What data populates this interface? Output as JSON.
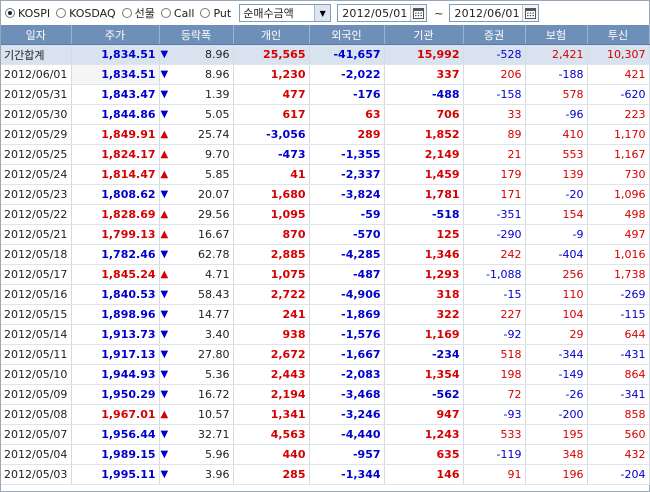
{
  "toolbar": {
    "markets": [
      {
        "label": "KOSPI",
        "checked": true
      },
      {
        "label": "KOSDAQ",
        "checked": false
      },
      {
        "label": "선물",
        "checked": false
      },
      {
        "label": "Call",
        "checked": false
      },
      {
        "label": "Put",
        "checked": false
      }
    ],
    "mode_select": "순매수금액",
    "date_from": "2012/05/01",
    "date_separator": "~",
    "date_to": "2012/06/01"
  },
  "table": {
    "columns": [
      "일자",
      "주가",
      "등락폭",
      "개인",
      "외국인",
      "기관",
      "증권",
      "보험",
      "투신"
    ],
    "summary": {
      "date": "기간합계",
      "price": "1,834.51",
      "dir": "down",
      "chg": "8.96",
      "individual": "25,565",
      "foreign": "-41,657",
      "institution": "15,992",
      "securities": "-528",
      "insurance": "2,421",
      "trust": "10,307"
    },
    "rows": [
      {
        "date": "2012/06/01",
        "price": "1,834.51",
        "dir": "down",
        "chg": "8.96",
        "individual": "1,230",
        "foreign": "-2,022",
        "institution": "337",
        "securities": "206",
        "insurance": "-188",
        "trust": "421"
      },
      {
        "date": "2012/05/31",
        "price": "1,843.47",
        "dir": "down",
        "chg": "1.39",
        "individual": "477",
        "foreign": "-176",
        "institution": "-488",
        "securities": "-158",
        "insurance": "578",
        "trust": "-620"
      },
      {
        "date": "2012/05/30",
        "price": "1,844.86",
        "dir": "down",
        "chg": "5.05",
        "individual": "617",
        "foreign": "63",
        "institution": "706",
        "securities": "33",
        "insurance": "-96",
        "trust": "223"
      },
      {
        "date": "2012/05/29",
        "price": "1,849.91",
        "dir": "up",
        "chg": "25.74",
        "individual": "-3,056",
        "foreign": "289",
        "institution": "1,852",
        "securities": "89",
        "insurance": "410",
        "trust": "1,170"
      },
      {
        "date": "2012/05/25",
        "price": "1,824.17",
        "dir": "up",
        "chg": "9.70",
        "individual": "-473",
        "foreign": "-1,355",
        "institution": "2,149",
        "securities": "21",
        "insurance": "553",
        "trust": "1,167"
      },
      {
        "date": "2012/05/24",
        "price": "1,814.47",
        "dir": "up",
        "chg": "5.85",
        "individual": "41",
        "foreign": "-2,337",
        "institution": "1,459",
        "securities": "179",
        "insurance": "139",
        "trust": "730"
      },
      {
        "date": "2012/05/23",
        "price": "1,808.62",
        "dir": "down",
        "chg": "20.07",
        "individual": "1,680",
        "foreign": "-3,824",
        "institution": "1,781",
        "securities": "171",
        "insurance": "-20",
        "trust": "1,096"
      },
      {
        "date": "2012/05/22",
        "price": "1,828.69",
        "dir": "up",
        "chg": "29.56",
        "individual": "1,095",
        "foreign": "-59",
        "institution": "-518",
        "securities": "-351",
        "insurance": "154",
        "trust": "498"
      },
      {
        "date": "2012/05/21",
        "price": "1,799.13",
        "dir": "up",
        "chg": "16.67",
        "individual": "870",
        "foreign": "-570",
        "institution": "125",
        "securities": "-290",
        "insurance": "-9",
        "trust": "497"
      },
      {
        "date": "2012/05/18",
        "price": "1,782.46",
        "dir": "down",
        "chg": "62.78",
        "individual": "2,885",
        "foreign": "-4,285",
        "institution": "1,346",
        "securities": "242",
        "insurance": "-404",
        "trust": "1,016"
      },
      {
        "date": "2012/05/17",
        "price": "1,845.24",
        "dir": "up",
        "chg": "4.71",
        "individual": "1,075",
        "foreign": "-487",
        "institution": "1,293",
        "securities": "-1,088",
        "insurance": "256",
        "trust": "1,738"
      },
      {
        "date": "2012/05/16",
        "price": "1,840.53",
        "dir": "down",
        "chg": "58.43",
        "individual": "2,722",
        "foreign": "-4,906",
        "institution": "318",
        "securities": "-15",
        "insurance": "110",
        "trust": "-269"
      },
      {
        "date": "2012/05/15",
        "price": "1,898.96",
        "dir": "down",
        "chg": "14.77",
        "individual": "241",
        "foreign": "-1,869",
        "institution": "322",
        "securities": "227",
        "insurance": "104",
        "trust": "-115"
      },
      {
        "date": "2012/05/14",
        "price": "1,913.73",
        "dir": "down",
        "chg": "3.40",
        "individual": "938",
        "foreign": "-1,576",
        "institution": "1,169",
        "securities": "-92",
        "insurance": "29",
        "trust": "644"
      },
      {
        "date": "2012/05/11",
        "price": "1,917.13",
        "dir": "down",
        "chg": "27.80",
        "individual": "2,672",
        "foreign": "-1,667",
        "institution": "-234",
        "securities": "518",
        "insurance": "-344",
        "trust": "-431"
      },
      {
        "date": "2012/05/10",
        "price": "1,944.93",
        "dir": "down",
        "chg": "5.36",
        "individual": "2,443",
        "foreign": "-2,083",
        "institution": "1,354",
        "securities": "198",
        "insurance": "-149",
        "trust": "864"
      },
      {
        "date": "2012/05/09",
        "price": "1,950.29",
        "dir": "down",
        "chg": "16.72",
        "individual": "2,194",
        "foreign": "-3,468",
        "institution": "-562",
        "securities": "72",
        "insurance": "-26",
        "trust": "-341"
      },
      {
        "date": "2012/05/08",
        "price": "1,967.01",
        "dir": "up",
        "chg": "10.57",
        "individual": "1,341",
        "foreign": "-3,246",
        "institution": "947",
        "securities": "-93",
        "insurance": "-200",
        "trust": "858"
      },
      {
        "date": "2012/05/07",
        "price": "1,956.44",
        "dir": "down",
        "chg": "32.71",
        "individual": "4,563",
        "foreign": "-4,440",
        "institution": "1,243",
        "securities": "533",
        "insurance": "195",
        "trust": "560"
      },
      {
        "date": "2012/05/04",
        "price": "1,989.15",
        "dir": "down",
        "chg": "5.96",
        "individual": "440",
        "foreign": "-957",
        "institution": "635",
        "securities": "-119",
        "insurance": "348",
        "trust": "432"
      },
      {
        "date": "2012/05/03",
        "price": "1,995.11",
        "dir": "down",
        "chg": "3.96",
        "individual": "285",
        "foreign": "-1,344",
        "institution": "146",
        "securities": "91",
        "insurance": "196",
        "trust": "-204"
      }
    ]
  },
  "colors": {
    "up": "#d50000",
    "down": "#0000cc",
    "header_bg": "#6e8fb8",
    "summary_bg": "#d9e3ef"
  }
}
